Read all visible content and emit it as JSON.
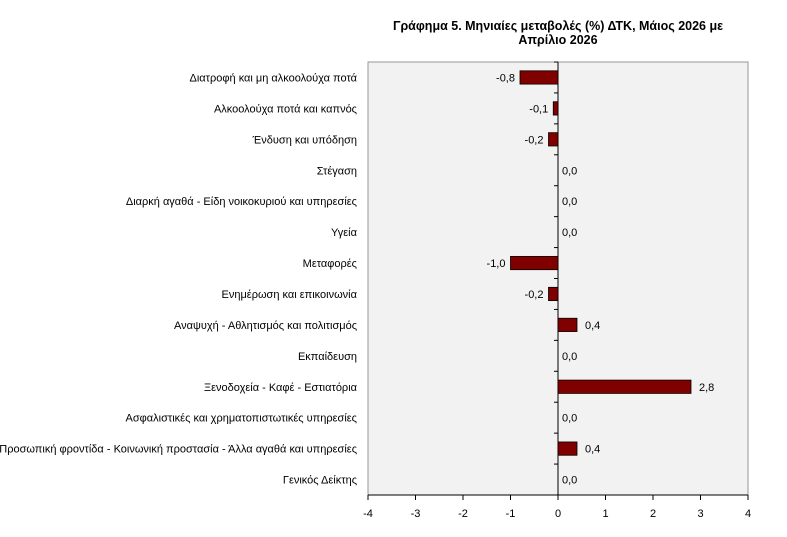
{
  "chart_data": {
    "type": "bar",
    "orientation": "horizontal",
    "title": "Γράφημα 5. Μηνιαίες μεταβολές (%) ΔΤΚ, Μάιος 2026 με Απρίλιο 2026",
    "xlabel": "",
    "ylabel": "",
    "categories": [
      "Διατροφή και μη αλκοολούχα ποτά",
      "Αλκοολούχα ποτά και καπνός",
      "Ένδυση και υπόδηση",
      "Στέγαση",
      "Διαρκή αγαθά - Είδη νοικοκυριού και υπηρεσίες",
      "Υγεία",
      "Μεταφορές",
      "Ενημέρωση και επικοινωνία",
      "Αναψυχή - Αθλητισμός και πολιτισμός",
      "Εκπαίδευση",
      "Ξενοδοχεία - Καφέ - Εστιατόρια",
      "Ασφαλιστικές και χρηματοπιστωτικές υπηρεσίες",
      "Προσωπική φροντίδα - Κοινωνική προστασία - Άλλα αγαθά και υπηρεσίες",
      "Γενικός Δείκτης"
    ],
    "values": [
      -0.8,
      -0.1,
      -0.2,
      0.0,
      0.0,
      0.0,
      -1.0,
      -0.2,
      0.4,
      0.0,
      2.8,
      0.0,
      0.4,
      0.0
    ],
    "data_labels": [
      "-0,8",
      "-0,1",
      "-0,2",
      "0,0",
      "0,0",
      "0,0",
      "-1,0",
      "-0,2",
      "0,4",
      "0,0",
      "2,8",
      "0,0",
      "0,4",
      "0,0"
    ],
    "xlim": [
      -4,
      4
    ],
    "xticks": [
      -4,
      -3,
      -2,
      -1,
      0,
      1,
      2,
      3,
      4
    ],
    "xtick_labels": [
      "-4",
      "-3",
      "-2",
      "-1",
      "0",
      "1",
      "2",
      "3",
      "4"
    ],
    "grid": false,
    "legend": "none",
    "colors": {
      "bar": "#800000",
      "plot_background": "#f2f2f2",
      "axis": "#000000"
    }
  }
}
